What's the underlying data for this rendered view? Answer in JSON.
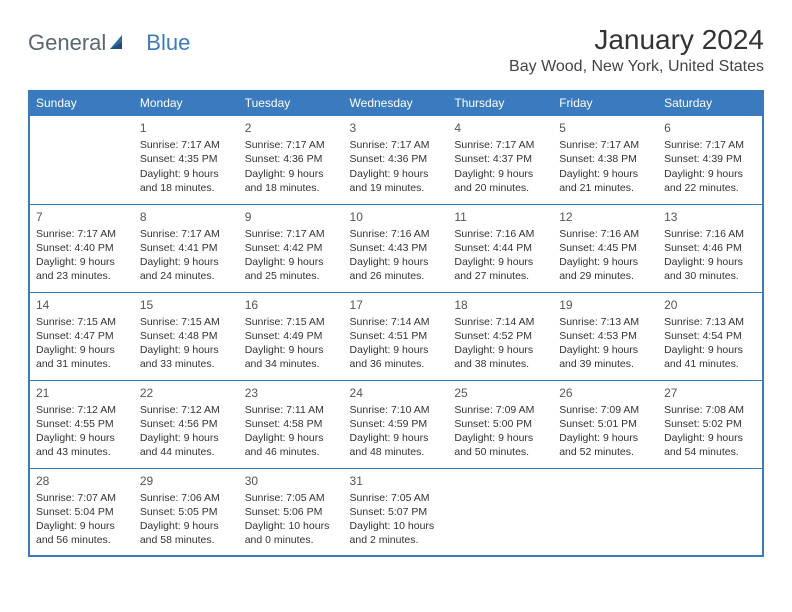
{
  "logo": {
    "text1": "General",
    "text2": "Blue",
    "accent": "#3a7bbf",
    "gray": "#5b6670"
  },
  "title": "January 2024",
  "location": "Bay Wood, New York, United States",
  "dayHeaders": [
    "Sunday",
    "Monday",
    "Tuesday",
    "Wednesday",
    "Thursday",
    "Friday",
    "Saturday"
  ],
  "headerBg": "#3a7bbf",
  "borderColor": "#3a7bbf",
  "weeks": [
    [
      {
        "n": "",
        "sr": "",
        "ss": "",
        "dl": ""
      },
      {
        "n": "1",
        "sr": "Sunrise: 7:17 AM",
        "ss": "Sunset: 4:35 PM",
        "dl": "Daylight: 9 hours and 18 minutes."
      },
      {
        "n": "2",
        "sr": "Sunrise: 7:17 AM",
        "ss": "Sunset: 4:36 PM",
        "dl": "Daylight: 9 hours and 18 minutes."
      },
      {
        "n": "3",
        "sr": "Sunrise: 7:17 AM",
        "ss": "Sunset: 4:36 PM",
        "dl": "Daylight: 9 hours and 19 minutes."
      },
      {
        "n": "4",
        "sr": "Sunrise: 7:17 AM",
        "ss": "Sunset: 4:37 PM",
        "dl": "Daylight: 9 hours and 20 minutes."
      },
      {
        "n": "5",
        "sr": "Sunrise: 7:17 AM",
        "ss": "Sunset: 4:38 PM",
        "dl": "Daylight: 9 hours and 21 minutes."
      },
      {
        "n": "6",
        "sr": "Sunrise: 7:17 AM",
        "ss": "Sunset: 4:39 PM",
        "dl": "Daylight: 9 hours and 22 minutes."
      }
    ],
    [
      {
        "n": "7",
        "sr": "Sunrise: 7:17 AM",
        "ss": "Sunset: 4:40 PM",
        "dl": "Daylight: 9 hours and 23 minutes."
      },
      {
        "n": "8",
        "sr": "Sunrise: 7:17 AM",
        "ss": "Sunset: 4:41 PM",
        "dl": "Daylight: 9 hours and 24 minutes."
      },
      {
        "n": "9",
        "sr": "Sunrise: 7:17 AM",
        "ss": "Sunset: 4:42 PM",
        "dl": "Daylight: 9 hours and 25 minutes."
      },
      {
        "n": "10",
        "sr": "Sunrise: 7:16 AM",
        "ss": "Sunset: 4:43 PM",
        "dl": "Daylight: 9 hours and 26 minutes."
      },
      {
        "n": "11",
        "sr": "Sunrise: 7:16 AM",
        "ss": "Sunset: 4:44 PM",
        "dl": "Daylight: 9 hours and 27 minutes."
      },
      {
        "n": "12",
        "sr": "Sunrise: 7:16 AM",
        "ss": "Sunset: 4:45 PM",
        "dl": "Daylight: 9 hours and 29 minutes."
      },
      {
        "n": "13",
        "sr": "Sunrise: 7:16 AM",
        "ss": "Sunset: 4:46 PM",
        "dl": "Daylight: 9 hours and 30 minutes."
      }
    ],
    [
      {
        "n": "14",
        "sr": "Sunrise: 7:15 AM",
        "ss": "Sunset: 4:47 PM",
        "dl": "Daylight: 9 hours and 31 minutes."
      },
      {
        "n": "15",
        "sr": "Sunrise: 7:15 AM",
        "ss": "Sunset: 4:48 PM",
        "dl": "Daylight: 9 hours and 33 minutes."
      },
      {
        "n": "16",
        "sr": "Sunrise: 7:15 AM",
        "ss": "Sunset: 4:49 PM",
        "dl": "Daylight: 9 hours and 34 minutes."
      },
      {
        "n": "17",
        "sr": "Sunrise: 7:14 AM",
        "ss": "Sunset: 4:51 PM",
        "dl": "Daylight: 9 hours and 36 minutes."
      },
      {
        "n": "18",
        "sr": "Sunrise: 7:14 AM",
        "ss": "Sunset: 4:52 PM",
        "dl": "Daylight: 9 hours and 38 minutes."
      },
      {
        "n": "19",
        "sr": "Sunrise: 7:13 AM",
        "ss": "Sunset: 4:53 PM",
        "dl": "Daylight: 9 hours and 39 minutes."
      },
      {
        "n": "20",
        "sr": "Sunrise: 7:13 AM",
        "ss": "Sunset: 4:54 PM",
        "dl": "Daylight: 9 hours and 41 minutes."
      }
    ],
    [
      {
        "n": "21",
        "sr": "Sunrise: 7:12 AM",
        "ss": "Sunset: 4:55 PM",
        "dl": "Daylight: 9 hours and 43 minutes."
      },
      {
        "n": "22",
        "sr": "Sunrise: 7:12 AM",
        "ss": "Sunset: 4:56 PM",
        "dl": "Daylight: 9 hours and 44 minutes."
      },
      {
        "n": "23",
        "sr": "Sunrise: 7:11 AM",
        "ss": "Sunset: 4:58 PM",
        "dl": "Daylight: 9 hours and 46 minutes."
      },
      {
        "n": "24",
        "sr": "Sunrise: 7:10 AM",
        "ss": "Sunset: 4:59 PM",
        "dl": "Daylight: 9 hours and 48 minutes."
      },
      {
        "n": "25",
        "sr": "Sunrise: 7:09 AM",
        "ss": "Sunset: 5:00 PM",
        "dl": "Daylight: 9 hours and 50 minutes."
      },
      {
        "n": "26",
        "sr": "Sunrise: 7:09 AM",
        "ss": "Sunset: 5:01 PM",
        "dl": "Daylight: 9 hours and 52 minutes."
      },
      {
        "n": "27",
        "sr": "Sunrise: 7:08 AM",
        "ss": "Sunset: 5:02 PM",
        "dl": "Daylight: 9 hours and 54 minutes."
      }
    ],
    [
      {
        "n": "28",
        "sr": "Sunrise: 7:07 AM",
        "ss": "Sunset: 5:04 PM",
        "dl": "Daylight: 9 hours and 56 minutes."
      },
      {
        "n": "29",
        "sr": "Sunrise: 7:06 AM",
        "ss": "Sunset: 5:05 PM",
        "dl": "Daylight: 9 hours and 58 minutes."
      },
      {
        "n": "30",
        "sr": "Sunrise: 7:05 AM",
        "ss": "Sunset: 5:06 PM",
        "dl": "Daylight: 10 hours and 0 minutes."
      },
      {
        "n": "31",
        "sr": "Sunrise: 7:05 AM",
        "ss": "Sunset: 5:07 PM",
        "dl": "Daylight: 10 hours and 2 minutes."
      },
      {
        "n": "",
        "sr": "",
        "ss": "",
        "dl": ""
      },
      {
        "n": "",
        "sr": "",
        "ss": "",
        "dl": ""
      },
      {
        "n": "",
        "sr": "",
        "ss": "",
        "dl": ""
      }
    ]
  ]
}
